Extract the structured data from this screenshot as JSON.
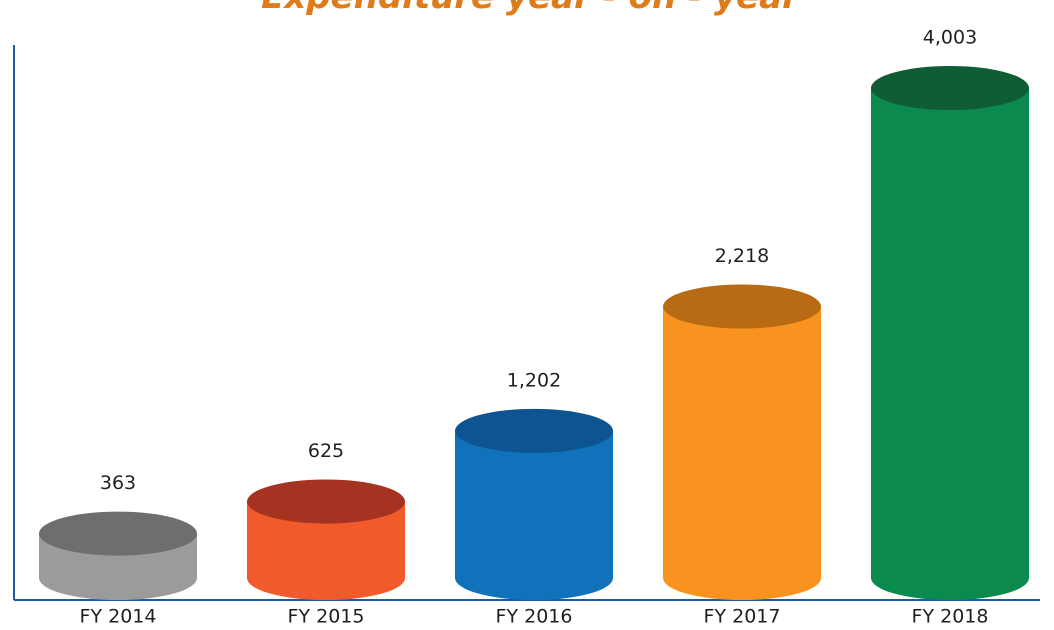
{
  "chart_data": {
    "type": "cylinder_bar",
    "title": "Expenditure year - on - year",
    "categories": [
      "FY 2014",
      "FY 2015",
      "FY 2016",
      "FY 2017",
      "FY 2018"
    ],
    "values": [
      363,
      625,
      1202,
      2218,
      4003
    ],
    "value_labels": [
      "363",
      "625",
      "1,202",
      "2,218",
      "4,003"
    ],
    "colors": [
      "#9b9b9b",
      "#f15a2b",
      "#0f72bb",
      "#f7931e",
      "#0a8a4f"
    ],
    "top_colors": [
      "#6f6e6c",
      "#a63322",
      "#0c5592",
      "#b86b12",
      "#0f5c35"
    ],
    "axis_color": "#1f5aa6"
  }
}
